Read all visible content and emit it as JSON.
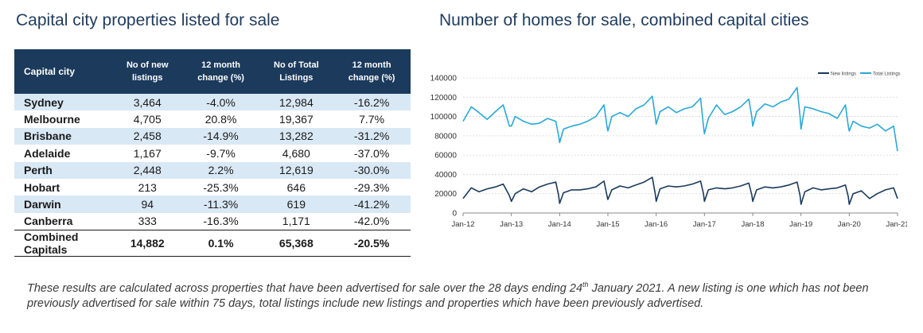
{
  "left_title": "Capital city properties listed for sale",
  "right_title": "Number of homes for sale, combined capital cities",
  "table": {
    "headers": [
      "Capital city",
      "No of new listings",
      "12 month change (%)",
      "No of Total Listings",
      "12 month change (%)"
    ],
    "rows": [
      [
        "Sydney",
        "3,464",
        "-4.0%",
        "12,984",
        "-16.2%"
      ],
      [
        "Melbourne",
        "4,705",
        "20.8%",
        "19,367",
        "7.7%"
      ],
      [
        "Brisbane",
        "2,458",
        "-14.9%",
        "13,282",
        "-31.2%"
      ],
      [
        "Adelaide",
        "1,167",
        "-9.7%",
        "4,680",
        "-37.0%"
      ],
      [
        "Perth",
        "2,448",
        "2.2%",
        "12,619",
        "-30.0%"
      ],
      [
        "Hobart",
        "213",
        "-25.3%",
        "646",
        "-29.3%"
      ],
      [
        "Darwin",
        "94",
        "-11.3%",
        "619",
        "-41.2%"
      ],
      [
        "Canberra",
        "333",
        "-16.3%",
        "1,171",
        "-42.0%"
      ]
    ],
    "total": [
      "Combined Capitals",
      "14,882",
      "0.1%",
      "65,368",
      "-20.5%"
    ]
  },
  "footnote": {
    "before": "These results are calculated across properties that have been advertised for sale over the 28 days ending 24",
    "sup": "th",
    "after": " January 2021.  A new listing is one which has not been previously advertised for sale within 75 days, total listings include new listings and properties which have been previously advertised."
  },
  "chart_data": {
    "type": "line",
    "ylim": [
      0,
      140000
    ],
    "yticks": [
      "0",
      "20000",
      "40000",
      "60000",
      "80000",
      "100000",
      "120000",
      "140000"
    ],
    "xticks": [
      "Jan-12",
      "Jan-13",
      "Jan-14",
      "Jan-15",
      "Jan-16",
      "Jan-17",
      "Jan-18",
      "Jan-19",
      "Jan-20",
      "Jan-21"
    ],
    "legend_position": "top-right",
    "grid": true,
    "colors": {
      "new": "#1b3a5c",
      "total": "#2aa8d8"
    },
    "x_positions": [
      2012.0,
      2012.17,
      2012.33,
      2012.5,
      2012.67,
      2012.83,
      2012.96,
      2013.0,
      2013.08,
      2013.25,
      2013.42,
      2013.58,
      2013.75,
      2013.92,
      2013.98,
      2014.0,
      2014.08,
      2014.25,
      2014.42,
      2014.58,
      2014.75,
      2014.92,
      2014.98,
      2015.0,
      2015.08,
      2015.25,
      2015.42,
      2015.58,
      2015.75,
      2015.92,
      2015.98,
      2016.0,
      2016.08,
      2016.25,
      2016.42,
      2016.58,
      2016.75,
      2016.92,
      2016.98,
      2017.0,
      2017.08,
      2017.25,
      2017.42,
      2017.58,
      2017.75,
      2017.92,
      2017.98,
      2018.0,
      2018.08,
      2018.25,
      2018.42,
      2018.58,
      2018.75,
      2018.92,
      2018.98,
      2019.0,
      2019.08,
      2019.25,
      2019.42,
      2019.58,
      2019.75,
      2019.92,
      2019.98,
      2020.0,
      2020.08,
      2020.25,
      2020.42,
      2020.58,
      2020.75,
      2020.92,
      2021.0
    ],
    "series": [
      {
        "name": "New listings",
        "values": [
          15000,
          26000,
          22000,
          25000,
          27000,
          30000,
          18000,
          12000,
          20000,
          25000,
          22000,
          27000,
          30000,
          32000,
          18000,
          10000,
          21000,
          24000,
          24000,
          25000,
          27000,
          33000,
          18000,
          14000,
          24000,
          28000,
          26000,
          29000,
          32000,
          37000,
          20000,
          12000,
          25000,
          28000,
          27000,
          28000,
          30000,
          33000,
          20000,
          12000,
          24000,
          26000,
          25000,
          26000,
          28000,
          31000,
          19000,
          12000,
          24000,
          27000,
          26000,
          27000,
          29000,
          32000,
          18000,
          9000,
          22000,
          26000,
          24000,
          25000,
          26000,
          29000,
          17000,
          9000,
          20000,
          23000,
          15000,
          20000,
          24000,
          26000,
          15000
        ]
      },
      {
        "name": "Total Listings",
        "values": [
          95000,
          110000,
          104000,
          97000,
          105000,
          112000,
          90000,
          90000,
          100000,
          95000,
          92000,
          93000,
          98000,
          95000,
          80000,
          73000,
          87000,
          90000,
          92000,
          95000,
          100000,
          112000,
          90000,
          85000,
          100000,
          104000,
          100000,
          108000,
          112000,
          121000,
          100000,
          92000,
          105000,
          110000,
          104000,
          108000,
          110000,
          119000,
          90000,
          82000,
          98000,
          112000,
          102000,
          105000,
          110000,
          118000,
          100000,
          90000,
          105000,
          113000,
          110000,
          115000,
          118000,
          130000,
          100000,
          87000,
          110000,
          108000,
          105000,
          103000,
          98000,
          112000,
          90000,
          85000,
          95000,
          90000,
          88000,
          92000,
          85000,
          90000,
          64000
        ]
      }
    ]
  }
}
